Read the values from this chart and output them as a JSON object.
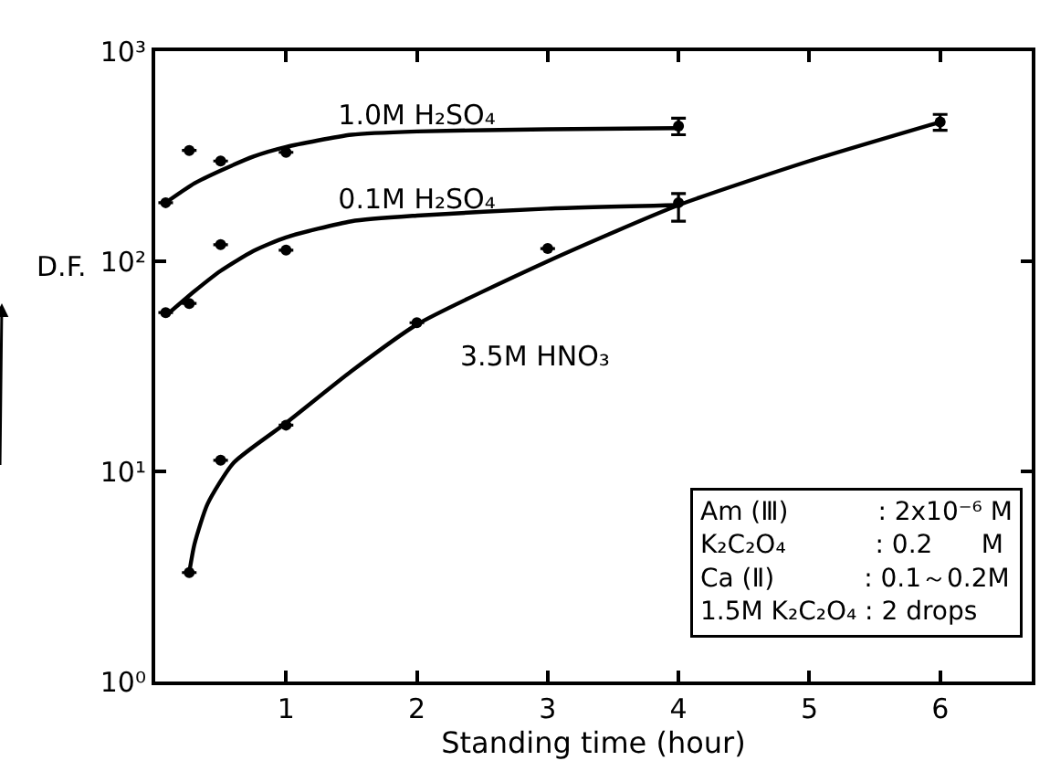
{
  "chart_data": {
    "type": "scatter",
    "xlabel": "Standing time (hour)",
    "ylabel": "D.F.",
    "log": "y",
    "xlim": [
      0,
      6.7
    ],
    "ylim": [
      1,
      1000
    ],
    "xticks": [
      1,
      2,
      3,
      4,
      5,
      6
    ],
    "yticks": [
      {
        "value": 1,
        "label": "10⁰"
      },
      {
        "value": 10,
        "label": "10¹"
      },
      {
        "value": 100,
        "label": "10²"
      },
      {
        "value": 1000,
        "label": "10³"
      }
    ],
    "legend": false,
    "marker": "circle",
    "series": [
      {
        "color": "#000000",
        "x": [
          0.08,
          0.26,
          0.5,
          1,
          4
        ],
        "values": [
          190,
          337,
          300,
          330,
          440
        ],
        "errors": [
          null,
          null,
          null,
          null,
          [
            400,
            480
          ]
        ]
      },
      {
        "type": "line",
        "marker": "none",
        "name": "1.0M H₂SO₄",
        "color": "#000000",
        "x": [
          0.08,
          0.3,
          0.5,
          0.75,
          1,
          1.5,
          2,
          3,
          4
        ],
        "values": [
          190,
          235,
          270,
          315,
          350,
          400,
          415,
          425,
          430
        ]
      },
      {
        "color": "#000000",
        "x": [
          0.08,
          0.26,
          0.5,
          1,
          4
        ],
        "values": [
          57,
          63,
          120,
          113,
          190
        ],
        "errors": [
          null,
          null,
          null,
          null,
          [
            155,
            210
          ]
        ]
      },
      {
        "type": "line",
        "marker": "none",
        "name": "0.1M H₂SO₄",
        "color": "#000000",
        "x": [
          0.08,
          0.3,
          0.5,
          0.75,
          1,
          1.5,
          2,
          3,
          4
        ],
        "values": [
          55,
          72,
          90,
          112,
          130,
          155,
          165,
          178,
          185
        ]
      },
      {
        "color": "#000000",
        "x": [
          0.26,
          0.5,
          1,
          2,
          3,
          6
        ],
        "values": [
          3.3,
          11.3,
          16.6,
          51,
          115,
          460
        ],
        "errors": [
          null,
          null,
          null,
          null,
          null,
          [
            420,
            500
          ]
        ]
      },
      {
        "type": "line",
        "marker": "none",
        "name": "3.5M HNO₃",
        "color": "#000000",
        "x": [
          0.26,
          0.3,
          0.4,
          0.6,
          1,
          1.5,
          2,
          3,
          4,
          5,
          6
        ],
        "values": [
          3.3,
          4.5,
          7,
          11,
          17,
          30,
          50,
          100,
          185,
          300,
          460
        ]
      }
    ],
    "annotations": [
      "Am (Ⅲ)           : 2x10⁻⁶ M",
      "K₂C₂O₄           : 0.2      M",
      "Ca (Ⅱ)           : 0.1～0.2M",
      "1.5M K₂C₂O₄ : 2 drops"
    ]
  }
}
